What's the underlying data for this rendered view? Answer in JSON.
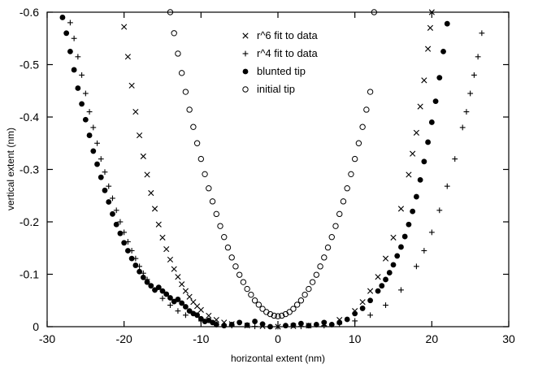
{
  "chart_data": {
    "type": "scatter",
    "xlabel": "horizontal extent (nm)",
    "ylabel": "vertical extent (nm)",
    "xlim": [
      -30,
      30
    ],
    "ylim": [
      0,
      -0.6
    ],
    "xticks": [
      "-30",
      "-20",
      "-10",
      "0",
      "10",
      "20",
      "30"
    ],
    "yticks": [
      "0",
      "-0.1",
      "-0.2",
      "-0.3",
      "-0.4",
      "-0.5",
      "-0.6"
    ],
    "grid": false,
    "legend_position": "top-center",
    "colors": {
      "marker": "#000000",
      "background": "#ffffff"
    },
    "series": [
      {
        "name": "r^6 fit to data",
        "marker": "x",
        "points": [
          [
            -20,
            -0.572
          ],
          [
            -19.5,
            -0.515
          ],
          [
            -19,
            -0.46
          ],
          [
            -18.5,
            -0.41
          ],
          [
            -18,
            -0.365
          ],
          [
            -17.5,
            -0.325
          ],
          [
            -17,
            -0.29
          ],
          [
            -16.5,
            -0.255
          ],
          [
            -16,
            -0.225
          ],
          [
            -15.5,
            -0.195
          ],
          [
            -15,
            -0.17
          ],
          [
            -14.5,
            -0.148
          ],
          [
            -14,
            -0.128
          ],
          [
            -13.5,
            -0.11
          ],
          [
            -13,
            -0.095
          ],
          [
            -12.5,
            -0.081
          ],
          [
            -12,
            -0.068
          ],
          [
            -11.5,
            -0.057
          ],
          [
            -11,
            -0.047
          ],
          [
            -10.5,
            -0.039
          ],
          [
            -10,
            -0.032
          ],
          [
            -9,
            -0.021
          ],
          [
            -8,
            -0.013
          ],
          [
            -7,
            -0.008
          ],
          [
            -6,
            -0.005
          ],
          [
            -4,
            -0.002
          ],
          [
            -2,
            -0.001
          ],
          [
            0,
            0
          ],
          [
            2,
            -0.001
          ],
          [
            4,
            -0.002
          ],
          [
            6,
            -0.005
          ],
          [
            8,
            -0.013
          ],
          [
            10,
            -0.03
          ],
          [
            11,
            -0.047
          ],
          [
            12,
            -0.068
          ],
          [
            13,
            -0.095
          ],
          [
            14,
            -0.13
          ],
          [
            15,
            -0.17
          ],
          [
            16,
            -0.225
          ],
          [
            17,
            -0.29
          ],
          [
            17.5,
            -0.33
          ],
          [
            18,
            -0.37
          ],
          [
            18.5,
            -0.42
          ],
          [
            19,
            -0.47
          ],
          [
            19.5,
            -0.53
          ],
          [
            19.8,
            -0.57
          ],
          [
            20,
            -0.6
          ]
        ]
      },
      {
        "name": "r^4 fit to data",
        "marker": "+",
        "points": [
          [
            -27,
            -0.58
          ],
          [
            -26.5,
            -0.55
          ],
          [
            -26,
            -0.515
          ],
          [
            -25.5,
            -0.48
          ],
          [
            -25,
            -0.445
          ],
          [
            -24.5,
            -0.41
          ],
          [
            -24,
            -0.38
          ],
          [
            -23.5,
            -0.35
          ],
          [
            -23,
            -0.32
          ],
          [
            -22.5,
            -0.295
          ],
          [
            -22,
            -0.268
          ],
          [
            -21.5,
            -0.245
          ],
          [
            -21,
            -0.222
          ],
          [
            -20.5,
            -0.2
          ],
          [
            -20,
            -0.18
          ],
          [
            -19.5,
            -0.162
          ],
          [
            -19,
            -0.145
          ],
          [
            -18.5,
            -0.13
          ],
          [
            -18,
            -0.115
          ],
          [
            -17.5,
            -0.102
          ],
          [
            -17,
            -0.09
          ],
          [
            -16,
            -0.07
          ],
          [
            -15,
            -0.054
          ],
          [
            -14,
            -0.041
          ],
          [
            -13,
            -0.03
          ],
          [
            -12,
            -0.022
          ],
          [
            -10,
            -0.011
          ],
          [
            -8,
            -0.005
          ],
          [
            -6,
            -0.002
          ],
          [
            -3,
            -0.0005
          ],
          [
            0,
            0
          ],
          [
            3,
            -0.0005
          ],
          [
            6,
            -0.002
          ],
          [
            8,
            -0.005
          ],
          [
            10,
            -0.011
          ],
          [
            12,
            -0.022
          ],
          [
            14,
            -0.041
          ],
          [
            16,
            -0.07
          ],
          [
            18,
            -0.115
          ],
          [
            19,
            -0.145
          ],
          [
            20,
            -0.18
          ],
          [
            21,
            -0.222
          ],
          [
            22,
            -0.268
          ],
          [
            23,
            -0.32
          ],
          [
            24,
            -0.38
          ],
          [
            24.5,
            -0.41
          ],
          [
            25,
            -0.445
          ],
          [
            25.5,
            -0.48
          ],
          [
            26,
            -0.515
          ],
          [
            26.5,
            -0.56
          ]
        ]
      },
      {
        "name": "blunted tip",
        "marker": "filled-circle",
        "points": [
          [
            -28,
            -0.59
          ],
          [
            -27.5,
            -0.56
          ],
          [
            -27,
            -0.525
          ],
          [
            -26.5,
            -0.49
          ],
          [
            -26,
            -0.455
          ],
          [
            -25.5,
            -0.425
          ],
          [
            -25,
            -0.395
          ],
          [
            -24.5,
            -0.365
          ],
          [
            -24,
            -0.335
          ],
          [
            -23.5,
            -0.31
          ],
          [
            -23,
            -0.285
          ],
          [
            -22.5,
            -0.26
          ],
          [
            -22,
            -0.238
          ],
          [
            -21.5,
            -0.215
          ],
          [
            -21,
            -0.195
          ],
          [
            -20.5,
            -0.178
          ],
          [
            -20,
            -0.16
          ],
          [
            -19.5,
            -0.145
          ],
          [
            -19,
            -0.13
          ],
          [
            -18.5,
            -0.117
          ],
          [
            -18,
            -0.105
          ],
          [
            -17.5,
            -0.094
          ],
          [
            -17,
            -0.085
          ],
          [
            -16.5,
            -0.078
          ],
          [
            -16,
            -0.07
          ],
          [
            -15.5,
            -0.075
          ],
          [
            -15,
            -0.068
          ],
          [
            -14.5,
            -0.062
          ],
          [
            -14,
            -0.055
          ],
          [
            -13.5,
            -0.048
          ],
          [
            -13,
            -0.052
          ],
          [
            -12.5,
            -0.045
          ],
          [
            -12,
            -0.038
          ],
          [
            -11.5,
            -0.03
          ],
          [
            -11,
            -0.025
          ],
          [
            -10.5,
            -0.022
          ],
          [
            -10,
            -0.015
          ],
          [
            -9.5,
            -0.01
          ],
          [
            -9,
            -0.012
          ],
          [
            -8.5,
            -0.008
          ],
          [
            -8,
            -0.004
          ],
          [
            -7,
            -0.002
          ],
          [
            -6,
            -0.004
          ],
          [
            -5,
            -0.008
          ],
          [
            -4,
            -0.003
          ],
          [
            -3,
            -0.01
          ],
          [
            -2,
            -0.005
          ],
          [
            -1,
            0
          ],
          [
            1,
            -0.002
          ],
          [
            2,
            -0.003
          ],
          [
            3,
            -0.006
          ],
          [
            4,
            -0.002
          ],
          [
            5,
            -0.004
          ],
          [
            6,
            -0.008
          ],
          [
            7,
            -0.004
          ],
          [
            8,
            -0.008
          ],
          [
            9,
            -0.014
          ],
          [
            10,
            -0.025
          ],
          [
            11,
            -0.035
          ],
          [
            12,
            -0.05
          ],
          [
            13,
            -0.068
          ],
          [
            13.5,
            -0.078
          ],
          [
            14,
            -0.09
          ],
          [
            14.5,
            -0.103
          ],
          [
            15,
            -0.118
          ],
          [
            15.5,
            -0.135
          ],
          [
            16,
            -0.152
          ],
          [
            16.5,
            -0.172
          ],
          [
            17,
            -0.195
          ],
          [
            17.5,
            -0.22
          ],
          [
            18,
            -0.248
          ],
          [
            18.5,
            -0.28
          ],
          [
            19,
            -0.315
          ],
          [
            19.5,
            -0.352
          ],
          [
            20,
            -0.39
          ],
          [
            20.5,
            -0.43
          ],
          [
            21,
            -0.475
          ],
          [
            21.5,
            -0.525
          ],
          [
            22,
            -0.578
          ]
        ]
      },
      {
        "name": "initial tip",
        "marker": "open-circle",
        "points": [
          [
            -14,
            -0.6
          ],
          [
            -13.5,
            -0.56
          ],
          [
            -13,
            -0.521
          ],
          [
            -12.5,
            -0.484
          ],
          [
            -12,
            -0.448
          ],
          [
            -11.5,
            -0.414
          ],
          [
            -11,
            -0.381
          ],
          [
            -10.5,
            -0.35
          ],
          [
            -10,
            -0.32
          ],
          [
            -9.5,
            -0.291
          ],
          [
            -9,
            -0.264
          ],
          [
            -8.5,
            -0.239
          ],
          [
            -8,
            -0.215
          ],
          [
            -7.5,
            -0.192
          ],
          [
            -7,
            -0.171
          ],
          [
            -6.5,
            -0.151
          ],
          [
            -6,
            -0.132
          ],
          [
            -5.5,
            -0.115
          ],
          [
            -5,
            -0.099
          ],
          [
            -4.5,
            -0.085
          ],
          [
            -4,
            -0.072
          ],
          [
            -3.5,
            -0.061
          ],
          [
            -3,
            -0.05
          ],
          [
            -2.5,
            -0.042
          ],
          [
            -2,
            -0.034
          ],
          [
            -1.5,
            -0.028
          ],
          [
            -1,
            -0.024
          ],
          [
            -0.5,
            -0.021
          ],
          [
            0,
            -0.02
          ],
          [
            0.5,
            -0.021
          ],
          [
            1,
            -0.024
          ],
          [
            1.5,
            -0.028
          ],
          [
            2,
            -0.034
          ],
          [
            2.5,
            -0.042
          ],
          [
            3,
            -0.05
          ],
          [
            3.5,
            -0.061
          ],
          [
            4,
            -0.072
          ],
          [
            4.5,
            -0.085
          ],
          [
            5,
            -0.099
          ],
          [
            5.5,
            -0.115
          ],
          [
            6,
            -0.132
          ],
          [
            6.5,
            -0.151
          ],
          [
            7,
            -0.171
          ],
          [
            7.5,
            -0.192
          ],
          [
            8,
            -0.215
          ],
          [
            8.5,
            -0.239
          ],
          [
            9,
            -0.264
          ],
          [
            9.5,
            -0.291
          ],
          [
            10,
            -0.32
          ],
          [
            10.5,
            -0.35
          ],
          [
            11,
            -0.381
          ],
          [
            11.5,
            -0.414
          ],
          [
            12,
            -0.448
          ],
          [
            12.5,
            -0.6
          ]
        ]
      }
    ]
  }
}
